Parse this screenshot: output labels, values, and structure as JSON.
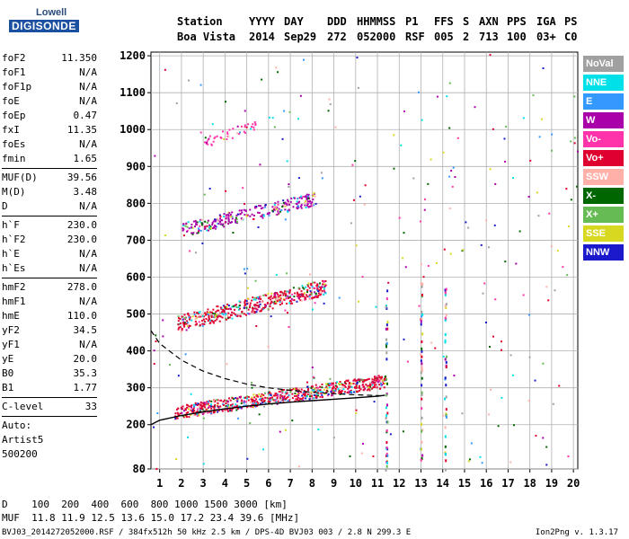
{
  "logo": {
    "brand": "Lowell",
    "product": "DIGISONDE"
  },
  "header": {
    "labels": [
      "Station",
      "YYYY",
      "DAY",
      "DDD",
      "HHMMSS",
      "P1",
      "FFS",
      "S",
      "AXN",
      "PPS",
      "IGA",
      "PS"
    ],
    "values": [
      "Boa Vista",
      "2014",
      "Sep29",
      "272",
      "052000",
      "RSF",
      "005",
      "2",
      "713",
      "100",
      "03+",
      "C0"
    ]
  },
  "params": {
    "group1": [
      {
        "k": "foF2",
        "v": "11.350"
      },
      {
        "k": "foF1",
        "v": "N/A"
      },
      {
        "k": "foF1p",
        "v": "N/A"
      },
      {
        "k": "foE",
        "v": "N/A"
      },
      {
        "k": "foEp",
        "v": "0.47"
      },
      {
        "k": "fxI",
        "v": "11.35"
      },
      {
        "k": "foEs",
        "v": "N/A"
      },
      {
        "k": "fmin",
        "v": "1.65"
      }
    ],
    "group2": [
      {
        "k": "MUF(D)",
        "v": "39.56"
      },
      {
        "k": "M(D)",
        "v": "3.48"
      },
      {
        "k": "D",
        "v": "N/A"
      }
    ],
    "group3": [
      {
        "k": "h`F",
        "v": "230.0"
      },
      {
        "k": "h`F2",
        "v": "230.0"
      },
      {
        "k": "h`E",
        "v": "N/A"
      },
      {
        "k": "h`Es",
        "v": "N/A"
      }
    ],
    "group4": [
      {
        "k": "hmF2",
        "v": "278.0"
      },
      {
        "k": "hmF1",
        "v": "N/A"
      },
      {
        "k": "hmE",
        "v": "110.0"
      },
      {
        "k": "yF2",
        "v": "34.5"
      },
      {
        "k": "yF1",
        "v": "N/A"
      },
      {
        "k": "yE",
        "v": "20.0"
      },
      {
        "k": "B0",
        "v": "35.3"
      },
      {
        "k": "B1",
        "v": "1.77"
      }
    ],
    "group5": [
      {
        "k": "C-level",
        "v": "33"
      }
    ],
    "auto": [
      "Auto:",
      "Artist5",
      "500200"
    ]
  },
  "legend": [
    {
      "label": "NoVal",
      "color": "#a0a0a0"
    },
    {
      "label": "NNE",
      "color": "#00e0e8"
    },
    {
      "label": "E",
      "color": "#3399ff"
    },
    {
      "label": "W",
      "color": "#aa00aa"
    },
    {
      "label": "Vo-",
      "color": "#ff33aa"
    },
    {
      "label": "Vo+",
      "color": "#e00030"
    },
    {
      "label": "SSW",
      "color": "#ffb0a8"
    },
    {
      "label": "X-",
      "color": "#006600"
    },
    {
      "label": "X+",
      "color": "#66bb55"
    },
    {
      "label": "SSE",
      "color": "#d8d820"
    },
    {
      "label": "NNW",
      "color": "#1a1acc"
    }
  ],
  "footer": {
    "line1": "D    100  200  400  600  800 1000 1500 3000 [km]",
    "line2": "MUF  11.8 11.9 12.5 13.6 15.0 17.2 23.4 39.6 [MHz]",
    "line3": "BVJ03_2014272052000.RSF / 384fx512h 50 kHz 2.5 km / DPS-4D BVJ03 003 / 2.8 N 299.3 E",
    "version": "Ion2Png v. 1.3.17"
  },
  "chart_data": {
    "type": "scatter",
    "x_ticks": [
      1,
      2,
      3,
      4,
      5,
      6,
      7,
      8,
      9,
      10,
      11,
      12,
      13,
      14,
      15,
      16,
      17,
      18,
      19,
      20
    ],
    "y_ticks": [
      80,
      200,
      300,
      400,
      500,
      600,
      700,
      800,
      900,
      1000,
      1100,
      1200
    ],
    "xlim": [
      0.6,
      20.2
    ],
    "ylim": [
      80,
      1210
    ],
    "grid": true,
    "traces": [
      {
        "name": "O-trace F2",
        "color": "#e00030",
        "x_start": 1.65,
        "x_end": 11.35,
        "h_start": 235,
        "h_end": 320,
        "spread": 18,
        "count": 700
      },
      {
        "name": "2nd hop",
        "color": "#e00030",
        "x_start": 1.8,
        "x_end": 8.6,
        "h_start": 475,
        "h_end": 575,
        "spread": 22,
        "count": 480
      },
      {
        "name": "3rd hop",
        "color": "#aa00aa",
        "x_start": 2.0,
        "x_end": 8.2,
        "h_start": 730,
        "h_end": 815,
        "spread": 18,
        "count": 280
      },
      {
        "name": "4th hop",
        "color": "#ff33aa",
        "x_start": 3.0,
        "x_end": 5.4,
        "h_start": 965,
        "h_end": 1015,
        "spread": 15,
        "count": 45
      }
    ],
    "profile_solid": [
      [
        0.6,
        200
      ],
      [
        1,
        212
      ],
      [
        2,
        225
      ],
      [
        3,
        235
      ],
      [
        4,
        243
      ],
      [
        5,
        250
      ],
      [
        6,
        256
      ],
      [
        7,
        261
      ],
      [
        8,
        265
      ],
      [
        9,
        269
      ],
      [
        10,
        273
      ],
      [
        11,
        277
      ],
      [
        11.35,
        280
      ]
    ],
    "profile_dashed": [
      [
        0.6,
        455
      ],
      [
        1,
        420
      ],
      [
        2,
        375
      ],
      [
        3,
        345
      ],
      [
        4,
        325
      ],
      [
        5,
        310
      ],
      [
        6,
        300
      ],
      [
        7,
        293
      ],
      [
        8,
        288
      ],
      [
        9,
        284
      ],
      [
        10,
        281
      ],
      [
        11,
        279
      ],
      [
        11.35,
        278
      ]
    ]
  }
}
